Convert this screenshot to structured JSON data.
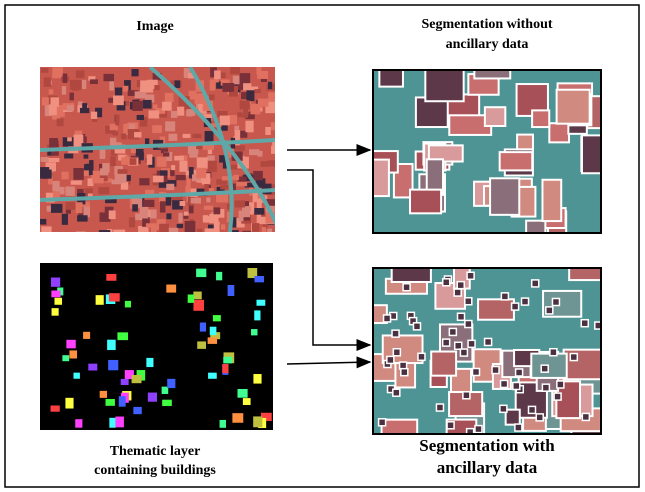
{
  "panels": [
    {
      "label": [
        "Image"
      ]
    },
    {
      "label": [
        "Segmentation without",
        "ancillary data"
      ]
    },
    {
      "label": [
        "Thematic layer",
        "containing buildings"
      ]
    },
    {
      "label": [
        "Segmentation with",
        "ancillary data"
      ]
    }
  ]
}
